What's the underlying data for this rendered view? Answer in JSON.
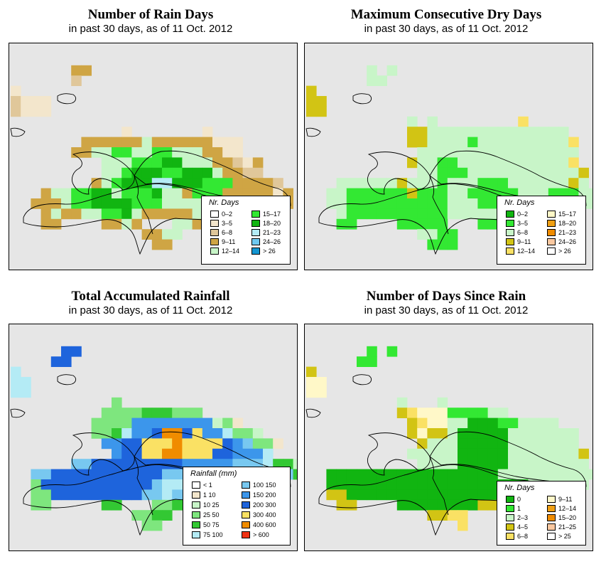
{
  "panels": [
    {
      "id": "rain-days",
      "title": "Number of Rain Days",
      "subtitle": "in past 30 days, as of  11 Oct. 2012",
      "legend_title": "Nr. Days",
      "legend": [
        {
          "label": "0–2",
          "color": "#ffffff"
        },
        {
          "label": "3–5",
          "color": "#f3e6cc"
        },
        {
          "label": "6–8",
          "color": "#e0c79a"
        },
        {
          "label": "9–11",
          "color": "#cfa544"
        },
        {
          "label": "12–14",
          "color": "#c8f5c8"
        },
        {
          "label": "15–17",
          "color": "#33e833"
        },
        {
          "label": "18–20",
          "color": "#11b511"
        },
        {
          "label": "21–23",
          "color": "#b4ebf5"
        },
        {
          "label": "24–26",
          "color": "#6ec8f0"
        },
        {
          "label": "> 26",
          "color": "#1496d2"
        }
      ]
    },
    {
      "id": "dry-days",
      "title": "Maximum Consecutive Dry Days",
      "subtitle": "in past 30 days, as of  11 Oct. 2012",
      "legend_title": "Nr. Days",
      "legend": [
        {
          "label": "0–2",
          "color": "#11b511"
        },
        {
          "label": "3–5",
          "color": "#33e833"
        },
        {
          "label": "6–8",
          "color": "#c8f5c8"
        },
        {
          "label": "9–11",
          "color": "#d2c414"
        },
        {
          "label": "12–14",
          "color": "#fae164"
        },
        {
          "label": "15–17",
          "color": "#fff8c8"
        },
        {
          "label": "18–20",
          "color": "#f0a014"
        },
        {
          "label": "21–23",
          "color": "#f08c00"
        },
        {
          "label": "24–26",
          "color": "#fac8a0"
        },
        {
          "label": "> 26",
          "color": "#ffffff"
        }
      ]
    },
    {
      "id": "rainfall",
      "title": "Total Accumulated Rainfall",
      "subtitle": "in past 30 days, as of  11 Oct. 2012",
      "legend_title": "Rainfall (mm)",
      "legend": [
        {
          "label": "< 1",
          "color": "#ffffff"
        },
        {
          "label": "1   10",
          "color": "#f3e6cc"
        },
        {
          "label": "10   25",
          "color": "#c8f5c8"
        },
        {
          "label": "25   50",
          "color": "#7ee67e"
        },
        {
          "label": "50   75",
          "color": "#33c833"
        },
        {
          "label": "75   100",
          "color": "#b4ebf5"
        },
        {
          "label": "100   150",
          "color": "#78c8f0"
        },
        {
          "label": "150   200",
          "color": "#3c96eb"
        },
        {
          "label": "200   300",
          "color": "#1e64dc"
        },
        {
          "label": "300   400",
          "color": "#fae164"
        },
        {
          "label": "400   600",
          "color": "#f08c00"
        },
        {
          "label": "> 600",
          "color": "#f03214"
        }
      ]
    },
    {
      "id": "since-rain",
      "title": "Number of Days Since Rain",
      "subtitle": "in past 30 days, as of  11 Oct. 2012",
      "legend_title": "Nr. Days",
      "legend": [
        {
          "label": "0",
          "color": "#11b511"
        },
        {
          "label": "1",
          "color": "#33e833"
        },
        {
          "label": "2–3",
          "color": "#c8f5c8"
        },
        {
          "label": "4–5",
          "color": "#d2c414"
        },
        {
          "label": "6–8",
          "color": "#fae164"
        },
        {
          "label": "9–11",
          "color": "#fff8c8"
        },
        {
          "label": "12–14",
          "color": "#f0a014"
        },
        {
          "label": "15–20",
          "color": "#f08c00"
        },
        {
          "label": "21–25",
          "color": "#fac8a0"
        },
        {
          "label": "> 25",
          "color": "#ffffff"
        }
      ]
    }
  ],
  "chart_data": [
    {
      "type": "heatmap",
      "title": "Number of Rain Days",
      "subtitle": "in past 30 days, as of  11 Oct. 2012",
      "legend_title": "Nr. Days",
      "classes": [
        "0–2",
        "3–5",
        "6–8",
        "9–11",
        "12–14",
        "15–17",
        "18–20",
        "21–23",
        "24–26",
        "> 26"
      ],
      "grid_rows": [
        "....................................",
        "....................................",
        "......33............................",
        "......2.............................",
        "1...................................",
        "2111................................",
        "2111................................",
        ".............................................",
        "...........1.......1................",
        ".......3333334333333111.............",
        "......33445544554443311.............",
        ".........4445556644433213...........",
        ".........4456665566643322...........",
        "........3456667766655533332.........",
        "...3445566455564435553333313........",
        "..33345566665554444444444333........",
        "...3433445564333334543341...........",
        "...33....3343...443.................",
        ".............3344...................",
        "..............33....................",
        "....................................",
        "...................................."
      ],
      "legend_position": "bottom-right"
    },
    {
      "type": "heatmap",
      "title": "Maximum Consecutive Dry Days",
      "subtitle": "in past 30 days, as of  11 Oct. 2012",
      "legend_title": "Nr. Days",
      "classes": [
        "0–2",
        "3–5",
        "6–8",
        "9–11",
        "12–14",
        "15–17",
        "18–20",
        "21–23",
        "24–26",
        "> 26"
      ],
      "legend_position": "bottom-right"
    },
    {
      "type": "heatmap",
      "title": "Total Accumulated Rainfall",
      "subtitle": "in past 30 days, as of  11 Oct. 2012",
      "legend_title": "Rainfall (mm)",
      "classes": [
        "< 1",
        "1   10",
        "10   25",
        "25   50",
        "50   75",
        "75   100",
        "100   150",
        "150   200",
        "200   300",
        "300   400",
        "400   600",
        "> 600"
      ],
      "legend_position": "bottom-right"
    },
    {
      "type": "heatmap",
      "title": "Number of Days Since Rain",
      "subtitle": "in past 30 days, as of  11 Oct. 2012",
      "legend_title": "Nr. Days",
      "classes": [
        "0",
        "1",
        "2–3",
        "4–5",
        "6–8",
        "9–11",
        "12–14",
        "15–20",
        "21–25",
        "> 25"
      ],
      "legend_position": "bottom-right"
    }
  ]
}
